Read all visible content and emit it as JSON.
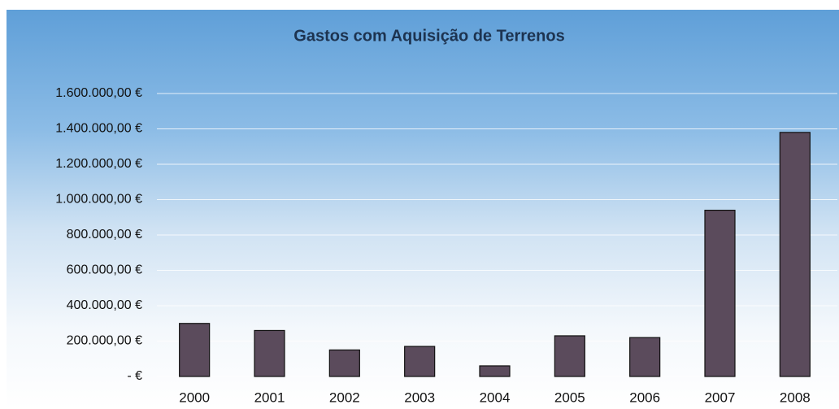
{
  "chart_data": {
    "type": "bar",
    "title": "Gastos com Aquisição de Terrenos",
    "categories": [
      "2000",
      "2001",
      "2002",
      "2003",
      "2004",
      "2005",
      "2006",
      "2007",
      "2008"
    ],
    "values": [
      300000,
      260000,
      150000,
      170000,
      60000,
      230000,
      220000,
      940000,
      1380000
    ],
    "color": "#5b4b5c",
    "ylim": [
      0,
      1600000
    ],
    "yticks": [
      {
        "value": 0,
        "label": "-   €"
      },
      {
        "value": 200000,
        "label": "200.000,00 €"
      },
      {
        "value": 400000,
        "label": "400.000,00 €"
      },
      {
        "value": 600000,
        "label": "600.000,00 €"
      },
      {
        "value": 800000,
        "label": "800.000,00 €"
      },
      {
        "value": 1000000,
        "label": "1.000.000,00 €"
      },
      {
        "value": 1200000,
        "label": "1.200.000,00 €"
      },
      {
        "value": 1400000,
        "label": "1.400.000,00 €"
      },
      {
        "value": 1600000,
        "label": "1.600.000,00 €"
      }
    ],
    "grid": true
  }
}
